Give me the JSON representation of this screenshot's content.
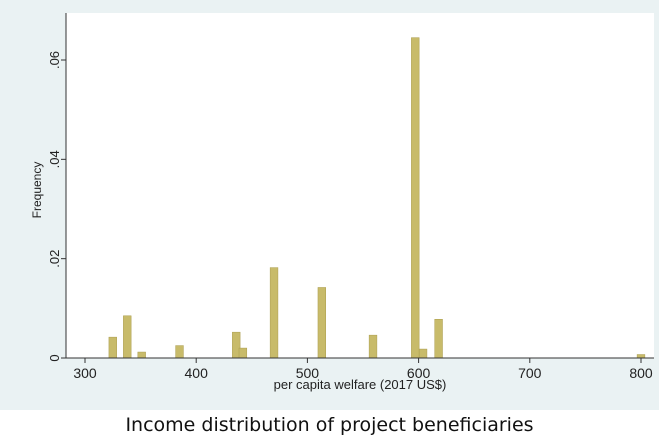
{
  "chart_data": {
    "type": "bar",
    "title": "",
    "xlabel": "per capita welfare (2017 US$)",
    "ylabel": "Frequency",
    "xlim": [
      290,
      810
    ],
    "ylim": [
      0,
      0.066
    ],
    "x_ticks": [
      300,
      400,
      500,
      600,
      700,
      800
    ],
    "y_ticks": [
      {
        "value": 0,
        "label": "0"
      },
      {
        "value": 0.02,
        "label": ".02"
      },
      {
        "value": 0.04,
        "label": ".04"
      },
      {
        "value": 0.06,
        "label": ".06"
      }
    ],
    "bin_width": 7,
    "grid": false,
    "bars": [
      {
        "x": 325,
        "y": 0.0042
      },
      {
        "x": 338,
        "y": 0.0085
      },
      {
        "x": 351,
        "y": 0.0012
      },
      {
        "x": 385,
        "y": 0.0025
      },
      {
        "x": 436,
        "y": 0.0052
      },
      {
        "x": 442,
        "y": 0.002
      },
      {
        "x": 470,
        "y": 0.0182
      },
      {
        "x": 513,
        "y": 0.0142
      },
      {
        "x": 559,
        "y": 0.0046
      },
      {
        "x": 597,
        "y": 0.0645
      },
      {
        "x": 604,
        "y": 0.0018
      },
      {
        "x": 618,
        "y": 0.0078
      },
      {
        "x": 800,
        "y": 0.0007
      }
    ],
    "colors": {
      "bar_fill": "#c8bb6a",
      "bar_stroke": "#aa9c4c",
      "plot_background": "#ffffff",
      "outer_background": "#eaf2f3",
      "axis": "#333333"
    }
  },
  "caption": "Income distribution of project beneficiaries"
}
